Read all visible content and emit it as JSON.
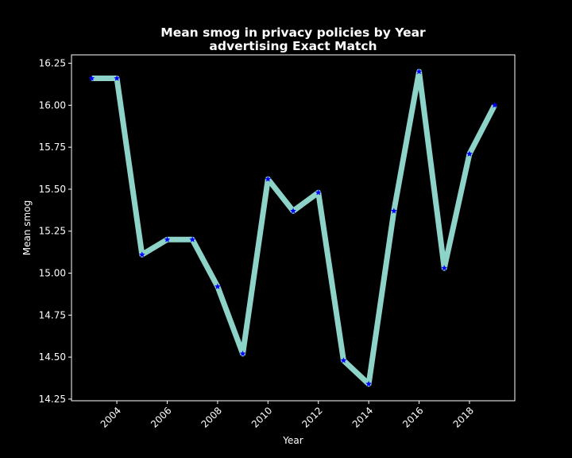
{
  "chart_data": {
    "type": "line",
    "title": "Mean smog in privacy policies by Year",
    "subtitle": "advertising Exact Match",
    "xlabel": "Year",
    "ylabel": "Mean smog",
    "x": [
      2003,
      2004,
      2005,
      2006,
      2007,
      2008,
      2009,
      2010,
      2011,
      2012,
      2013,
      2014,
      2015,
      2016,
      2017,
      2018,
      2019
    ],
    "series": [
      {
        "values": [
          16.16,
          16.16,
          15.11,
          15.2,
          15.2,
          14.92,
          14.52,
          15.56,
          15.37,
          15.48,
          14.48,
          14.34,
          15.37,
          16.2,
          15.03,
          15.71,
          16.0
        ]
      }
    ],
    "xlim": [
      2002.2,
      2019.8
    ],
    "ylim": [
      14.24,
      16.3
    ],
    "xticks": [
      2004,
      2006,
      2008,
      2010,
      2012,
      2014,
      2016,
      2018
    ],
    "yticks": [
      14.25,
      14.5,
      14.75,
      15.0,
      15.25,
      15.5,
      15.75,
      16.0,
      16.25
    ],
    "ytick_labels": [
      "14.25",
      "14.50",
      "14.75",
      "15.00",
      "15.25",
      "15.50",
      "15.75",
      "16.00",
      "16.25"
    ],
    "grid": false,
    "legend": "none",
    "colors": {
      "background": "#000000",
      "line": "#8dd3c7",
      "marker": "#0000ff",
      "axes": "#ffffff",
      "text": "#ffffff"
    },
    "marker": "star"
  }
}
